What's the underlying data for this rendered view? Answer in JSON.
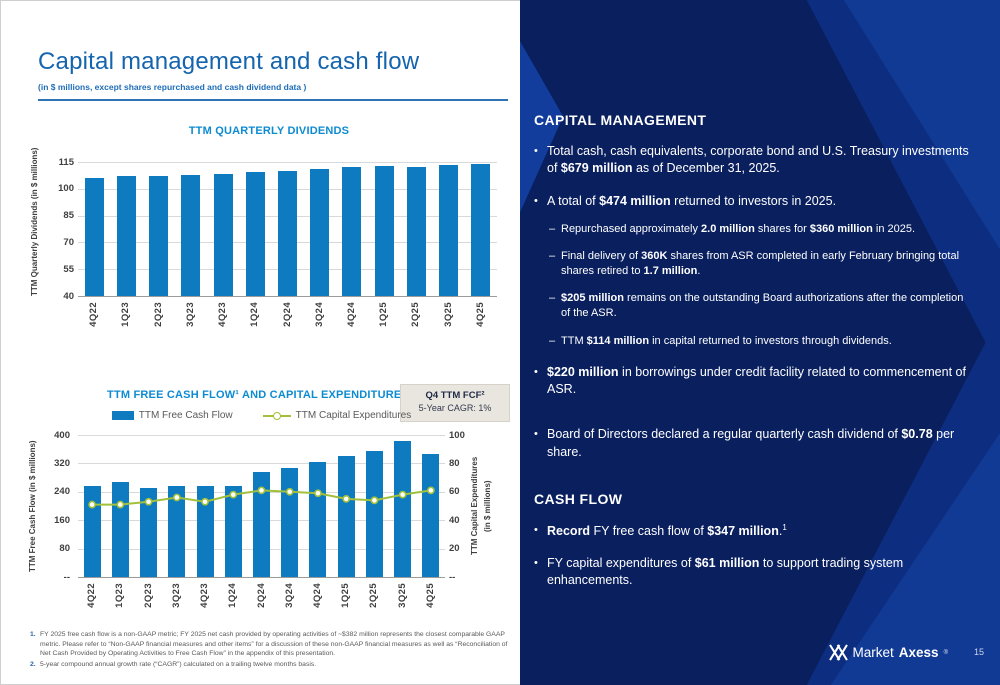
{
  "slide": {
    "title": "Capital management and cash flow",
    "subtitle": "(in $ millions, except shares repurchased and cash dividend data )",
    "page_number": "15",
    "logo_market": "Market",
    "logo_axess": "Axess",
    "logo_reg": "®"
  },
  "colors": {
    "bar_blue": "#0e7bc0",
    "line_green": "#a2c03c",
    "title_blue": "#1464ae",
    "chart_title_blue": "#0d8bd1",
    "panel_base": "#0d2e80",
    "panel_dark": "#091f5e",
    "panel_light": "#113a94",
    "callout_bg": "#e9e6e0"
  },
  "chart_data": [
    {
      "type": "bar",
      "title": "TTM QUARTERLY DIVIDENDS",
      "ylabel": "TTM Quarterly Dividends (in $ millions)",
      "categories": [
        "4Q22",
        "1Q23",
        "2Q23",
        "3Q23",
        "4Q23",
        "1Q24",
        "2Q24",
        "3Q24",
        "4Q24",
        "1Q25",
        "2Q25",
        "3Q25",
        "4Q25"
      ],
      "values": [
        106,
        107,
        107,
        107.5,
        108.5,
        109.5,
        110,
        111,
        112,
        113,
        112,
        113.5,
        114
      ],
      "ylim": [
        40,
        115
      ],
      "yticks": [
        115,
        100,
        85,
        70,
        55,
        40
      ],
      "grid": "horizontal"
    },
    {
      "type": "bar+line",
      "title": "TTM FREE CASH FLOW¹ AND CAPITAL EXPENDITURES",
      "categories": [
        "4Q22",
        "1Q23",
        "2Q23",
        "3Q23",
        "4Q23",
        "1Q24",
        "2Q24",
        "3Q24",
        "4Q24",
        "1Q25",
        "2Q25",
        "3Q25",
        "4Q25"
      ],
      "series": [
        {
          "name": "TTM Free Cash Flow",
          "type": "bar",
          "axis": "left",
          "values": [
            257,
            268,
            250,
            257,
            255,
            255,
            295,
            306,
            324,
            341,
            356,
            383,
            347
          ]
        },
        {
          "name": "TTM Capital Expenditures",
          "type": "line",
          "axis": "right",
          "values": [
            51,
            51,
            53,
            56,
            53,
            58,
            61,
            60,
            59,
            55,
            54,
            58,
            61
          ]
        }
      ],
      "left_axis": {
        "label": "TTM Free Cash Flow (in $ millions)",
        "lim": [
          0,
          400
        ],
        "ticks": [
          "400",
          "320",
          "240",
          "160",
          "80",
          "--"
        ]
      },
      "right_axis": {
        "label_line1": "TTM Capital Expenditures",
        "label_line2": "(in $ millions)",
        "lim": [
          0,
          100
        ],
        "ticks": [
          "100",
          "80",
          "60",
          "40",
          "20",
          "--"
        ]
      },
      "legend_position": "top",
      "callout": {
        "line1": "Q4 TTM FCF²",
        "line2": "5-Year CAGR: 1%"
      }
    }
  ],
  "right_panel": {
    "section1_heading": "CAPITAL MANAGEMENT",
    "section1_bullets": [
      {
        "level": 1,
        "segments": [
          {
            "t": "Total cash, cash equivalents, corporate bond and U.S. Treasury investments of "
          },
          {
            "t": "$679 million",
            "b": true
          },
          {
            "t": " as of December 31, 2025."
          }
        ]
      },
      {
        "level": 1,
        "segments": [
          {
            "t": "A total of "
          },
          {
            "t": "$474 million",
            "b": true
          },
          {
            "t": " returned to investors in 2025."
          }
        ]
      },
      {
        "level": 2,
        "segments": [
          {
            "t": "Repurchased approximately "
          },
          {
            "t": "2.0 million",
            "b": true
          },
          {
            "t": " shares for "
          },
          {
            "t": "$360 million",
            "b": true
          },
          {
            "t": " in 2025."
          }
        ]
      },
      {
        "level": 2,
        "segments": [
          {
            "t": "Final delivery of "
          },
          {
            "t": "360K",
            "b": true
          },
          {
            "t": " shares from ASR completed in early February bringing total shares retired to "
          },
          {
            "t": "1.7 million",
            "b": true
          },
          {
            "t": "."
          }
        ]
      },
      {
        "level": 2,
        "segments": [
          {
            "t": "$205 million",
            "b": true
          },
          {
            "t": " remains on the outstanding Board authorizations after the completion of the ASR."
          }
        ]
      },
      {
        "level": 2,
        "segments": [
          {
            "t": "TTM "
          },
          {
            "t": "$114 million",
            "b": true
          },
          {
            "t": " in capital returned to investors through dividends."
          }
        ]
      },
      {
        "level": 1,
        "segments": [
          {
            "t": "$220 million",
            "b": true
          },
          {
            "t": " in borrowings under credit facility related to commencement of ASR."
          }
        ]
      },
      {
        "level": 1,
        "segments": [
          {
            "t": "Board of Directors declared a regular quarterly cash dividend of "
          },
          {
            "t": "$0.78",
            "b": true
          },
          {
            "t": " per share."
          }
        ]
      }
    ],
    "section2_heading": "CASH FLOW",
    "section2_bullets": [
      {
        "level": 1,
        "segments": [
          {
            "t": "Record",
            "b": true
          },
          {
            "t": " FY free cash flow of "
          },
          {
            "t": "$347 million",
            "b": true
          },
          {
            "t": "."
          },
          {
            "t": "1",
            "sup": true
          }
        ]
      },
      {
        "level": 1,
        "segments": [
          {
            "t": "FY capital expenditures of "
          },
          {
            "t": "$61 million",
            "b": true
          },
          {
            "t": " to support trading system enhancements."
          }
        ]
      }
    ]
  },
  "footnotes": [
    {
      "num": "1.",
      "text": "FY 2025 free cash flow is a non-GAAP metric; FY 2025 net cash provided by operating activities of ~$382 million represents the closest comparable GAAP metric. Please refer to “Non-GAAP financial measures and other items” for a discussion of these non-GAAP financial measures as well as “Reconciliation of Net Cash Provided by Operating Activities to Free Cash Flow” in the appendix of this presentation."
    },
    {
      "num": "2.",
      "text": "5-year compound annual growth rate (“CAGR”) calculated on a trailing twelve months basis."
    }
  ]
}
